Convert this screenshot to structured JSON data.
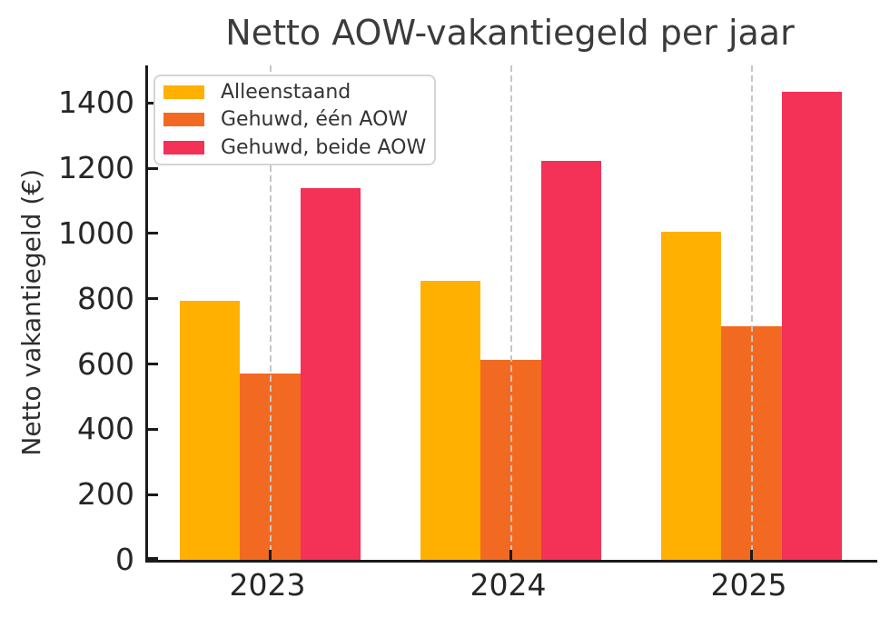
{
  "chart_data": {
    "type": "bar",
    "title": "Netto AOW-vakantiegeld per jaar",
    "ylabel": "Netto vakantiegeld (€)",
    "xlabel": "",
    "categories": [
      "2023",
      "2024",
      "2025"
    ],
    "series": [
      {
        "name": "Alleenstaand",
        "color": "#FFB000",
        "values": [
          795,
          855,
          1005
        ]
      },
      {
        "name": "Gehuwd, één AOW",
        "color": "#F26A21",
        "values": [
          570,
          612,
          717
        ]
      },
      {
        "name": "Gehuwd, beide AOW",
        "color": "#F43157",
        "values": [
          1140,
          1224,
          1434
        ]
      }
    ],
    "yticks": [
      0,
      200,
      400,
      600,
      800,
      1000,
      1200,
      1400
    ],
    "ylim": [
      0,
      1515
    ],
    "grid": "vertical-dashed-at-group-centers",
    "legend_position": "upper-left",
    "tick_direction": "in"
  },
  "colors": {
    "background": "#ffffff",
    "spine": "#1a1a1a",
    "grid": "#c6c6c6",
    "tick_text": "#262626",
    "title_text": "#3b3b3b",
    "legend_border": "#d4d4d4"
  }
}
